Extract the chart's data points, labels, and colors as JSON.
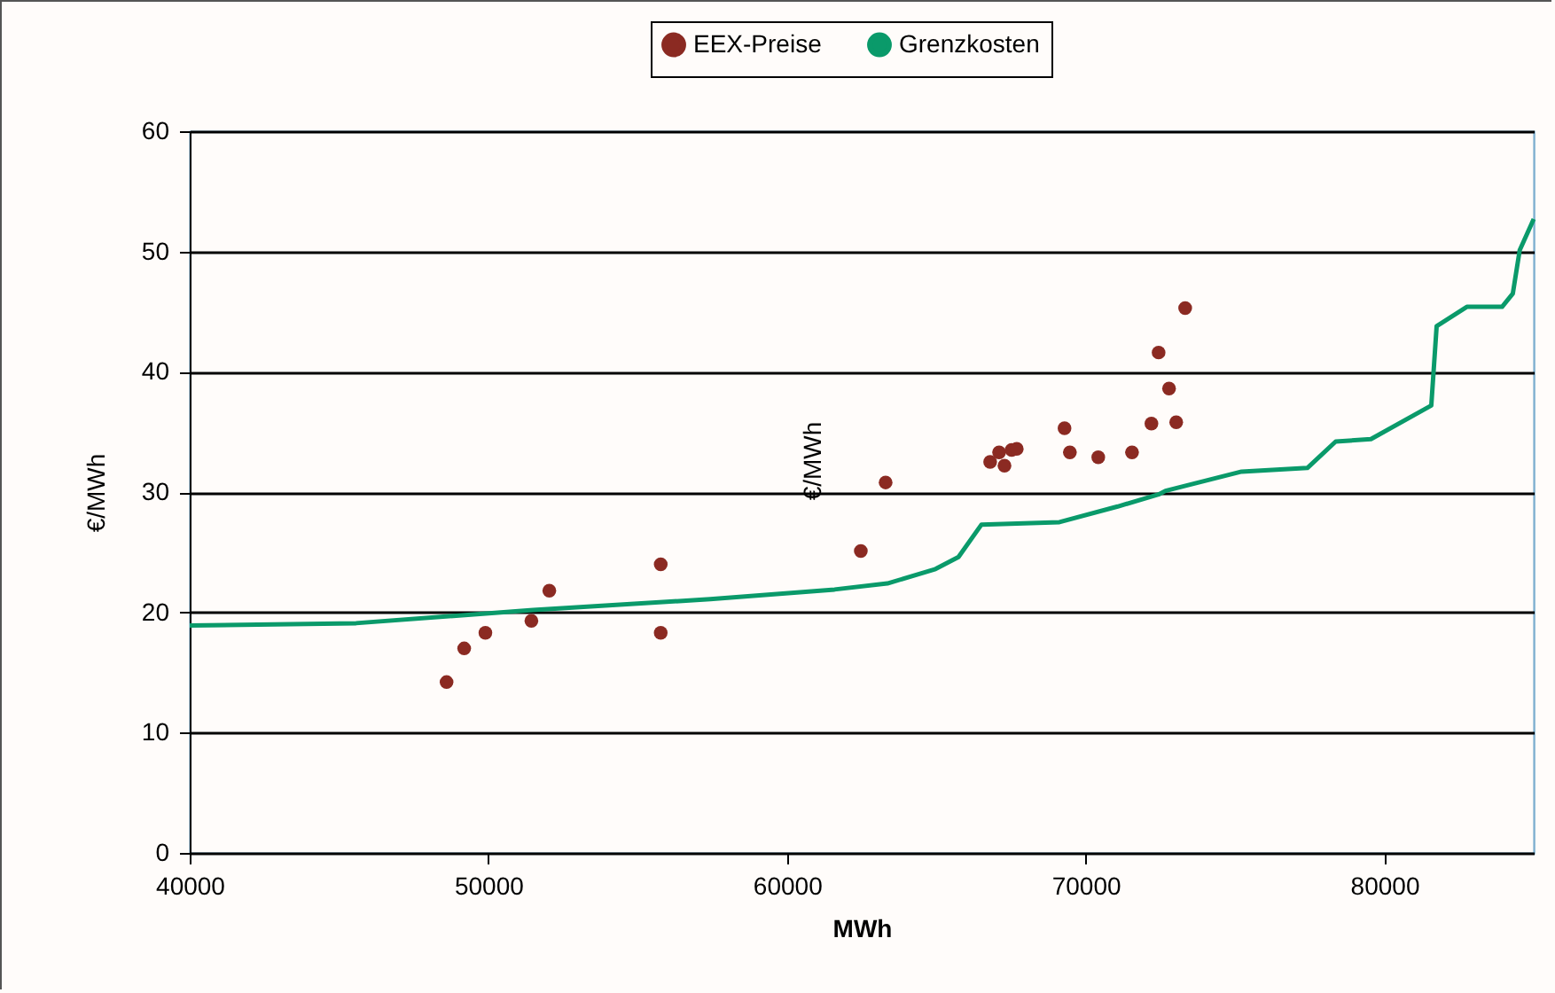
{
  "chart_data": {
    "type": "scatter",
    "xlabel": "MWh",
    "ylabel": "€/MWh",
    "annotations": [
      "€/MWh"
    ],
    "xlim": [
      40000,
      85000
    ],
    "xticks": [
      40000,
      50000,
      60000,
      70000,
      80000
    ],
    "ylim": [
      0,
      60
    ],
    "yticks": [
      0,
      10,
      20,
      30,
      40,
      50,
      60
    ],
    "grid": "y",
    "legend": "top",
    "series": [
      {
        "name": "EEX-Preise",
        "color": "#8b2a22",
        "marker": "circle",
        "x": [
          48600,
          49190,
          49900,
          51440,
          52040,
          55770,
          55770,
          62470,
          63300,
          66800,
          67100,
          67280,
          67520,
          67690,
          69290,
          69470,
          70420,
          71550,
          72200,
          72440,
          72790,
          73030,
          73330
        ],
        "values": [
          14.2,
          17.0,
          18.3,
          19.3,
          21.8,
          24.0,
          18.3,
          25.1,
          30.8,
          32.5,
          33.3,
          32.2,
          33.5,
          33.6,
          35.3,
          33.3,
          32.9,
          33.3,
          35.7,
          41.6,
          38.6,
          35.8,
          45.3
        ]
      },
      {
        "name": "Grenzkosten",
        "type": "line",
        "color": "#0a9a6a",
        "line_style": "solid",
        "x": [
          40000,
          45570,
          51500,
          57430,
          61590,
          63360,
          64970,
          65740,
          66510,
          69120,
          71070,
          72440,
          72670,
          75220,
          77420,
          78370,
          79550,
          81570,
          81750,
          82760,
          83940,
          84300,
          84530,
          85000
        ],
        "values": [
          18.9,
          19.1,
          20.2,
          21.1,
          21.9,
          22.4,
          23.6,
          24.6,
          27.3,
          27.5,
          28.8,
          29.8,
          30.1,
          31.7,
          32.0,
          34.2,
          34.4,
          37.2,
          43.8,
          45.4,
          45.4,
          46.5,
          50.1,
          52.7
        ]
      }
    ]
  }
}
